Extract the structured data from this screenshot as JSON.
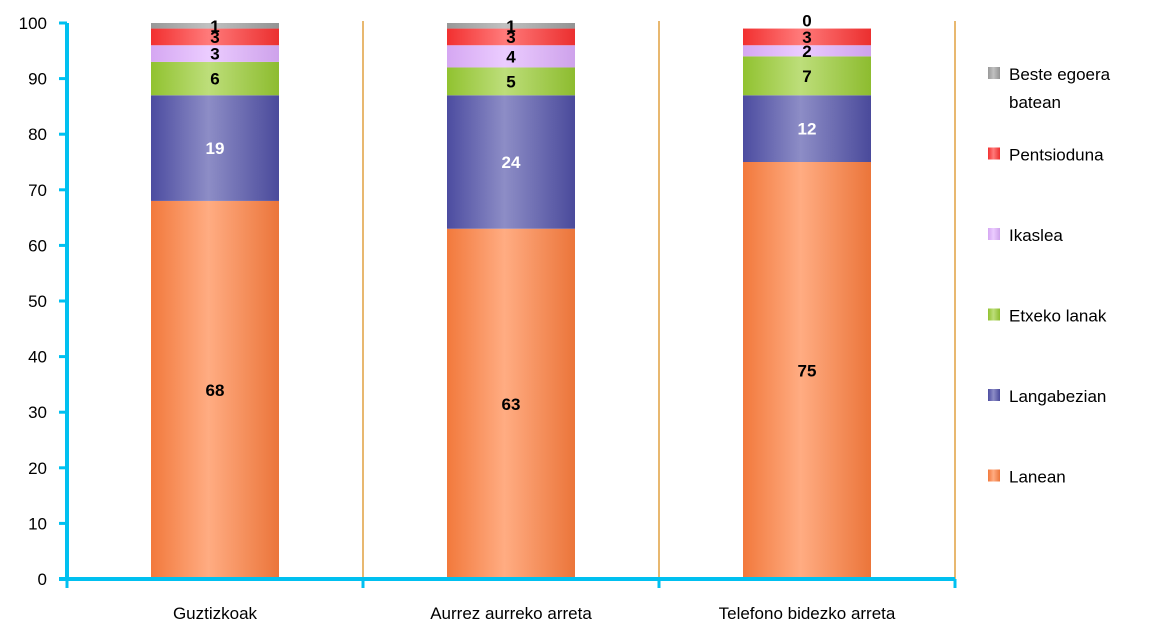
{
  "chart_data": {
    "type": "bar",
    "stacked": true,
    "categories": [
      "Guztizkoak",
      "Aurrez aurreko arreta",
      "Telefono bidezko arreta"
    ],
    "series": [
      {
        "name": "Lanean",
        "values": [
          68,
          63,
          75
        ],
        "color": "#ff7f3f",
        "label_color": "#000000"
      },
      {
        "name": "Langabezian",
        "values": [
          19,
          24,
          12
        ],
        "color": "#5050a8",
        "label_color": "#ffffff"
      },
      {
        "name": "Etxeko lanak",
        "values": [
          6,
          5,
          7
        ],
        "color": "#99cc33",
        "label_color": "#000000"
      },
      {
        "name": "Ikaslea",
        "values": [
          3,
          4,
          2
        ],
        "color": "#e0b0ff",
        "label_color": "#000000"
      },
      {
        "name": "Pentsioduna",
        "values": [
          3,
          3,
          3
        ],
        "color": "#ff3333",
        "label_color": "#000000"
      },
      {
        "name": "Beste egoera batean",
        "values": [
          1,
          1,
          0
        ],
        "color": "#a0a0a0",
        "label_color": "#000000"
      }
    ],
    "title": "",
    "xlabel": "",
    "ylabel": "",
    "ylim": [
      0,
      100
    ],
    "yticks": [
      0,
      10,
      20,
      30,
      40,
      50,
      60,
      70,
      80,
      90,
      100
    ],
    "grid": false,
    "legend_position": "right",
    "axis_color": "#00c0f0",
    "separator_color": "#e0a040"
  }
}
